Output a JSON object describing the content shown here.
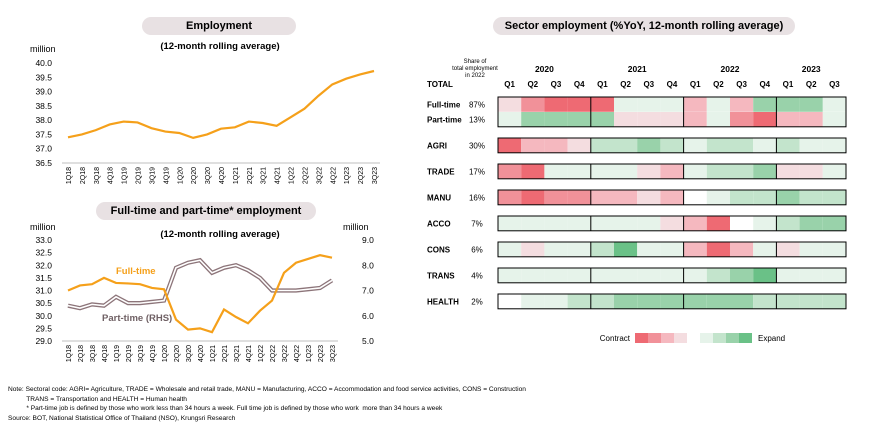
{
  "chart_data": [
    {
      "type": "line",
      "title": "Employment",
      "subtitle": "(12-month rolling average)",
      "ylabel": "million",
      "ylim": [
        36.5,
        40.0
      ],
      "yticks": [
        "40.0",
        "39.5",
        "39.0",
        "38.5",
        "38.0",
        "37.5",
        "37.0",
        "36.5"
      ],
      "x": [
        "1Q18",
        "2Q18",
        "3Q18",
        "4Q18",
        "1Q19",
        "2Q19",
        "3Q19",
        "4Q19",
        "1Q20",
        "2Q20",
        "3Q20",
        "4Q20",
        "1Q21",
        "2Q21",
        "3Q21",
        "4Q21",
        "1Q22",
        "2Q22",
        "3Q22",
        "4Q22",
        "1Q23",
        "2Q23",
        "3Q23"
      ],
      "series": [
        {
          "color": "#f5a01a",
          "values": [
            37.4,
            37.5,
            37.65,
            37.85,
            37.95,
            37.92,
            37.72,
            37.6,
            37.55,
            37.38,
            37.5,
            37.7,
            37.75,
            37.95,
            37.9,
            37.8,
            38.1,
            38.4,
            38.85,
            39.25,
            39.45,
            39.6,
            39.72
          ]
        }
      ]
    },
    {
      "type": "line",
      "title": "Full-time and part-time* employment",
      "subtitle": "(12-month rolling average)",
      "ylabel": "million",
      "y2label": "million",
      "ylim": [
        29.0,
        33.0
      ],
      "y2lim": [
        5.0,
        9.0
      ],
      "yticks": [
        "33.0",
        "32.5",
        "32.0",
        "31.5",
        "31.0",
        "30.5",
        "30.0",
        "29.5",
        "29.0"
      ],
      "y2ticks": [
        "9.0",
        "8.0",
        "7.0",
        "6.0",
        "5.0"
      ],
      "x": [
        "1Q18",
        "2Q18",
        "3Q18",
        "4Q18",
        "1Q19",
        "2Q19",
        "3Q19",
        "4Q19",
        "1Q20",
        "2Q20",
        "3Q20",
        "4Q20",
        "1Q21",
        "2Q21",
        "3Q21",
        "4Q21",
        "1Q22",
        "2Q22",
        "3Q22",
        "4Q22",
        "1Q23",
        "2Q23",
        "3Q23"
      ],
      "series": [
        {
          "name": "Full-time",
          "axis": "left",
          "color": "#f5a01a",
          "values": [
            31.0,
            31.2,
            31.25,
            31.5,
            31.3,
            31.28,
            31.25,
            31.1,
            31.05,
            29.85,
            29.45,
            29.5,
            29.35,
            30.25,
            29.95,
            29.7,
            30.2,
            30.6,
            31.7,
            32.1,
            32.25,
            32.4,
            32.3
          ]
        },
        {
          "name": "Part-time (RHS)",
          "axis": "right",
          "color": "#8c7479",
          "values": [
            6.4,
            6.3,
            6.45,
            6.4,
            6.75,
            6.5,
            6.5,
            6.55,
            6.6,
            7.9,
            8.1,
            8.2,
            7.7,
            7.9,
            8.0,
            7.8,
            7.5,
            7.0,
            7.0,
            7.0,
            7.05,
            7.1,
            7.4
          ]
        }
      ]
    },
    {
      "type": "heatmap",
      "title": "Sector employment (%YoY, 12-month rolling average)",
      "share_header": "Share of total employment in 2022",
      "years": [
        "2020",
        "2021",
        "2022",
        "2023"
      ],
      "quarters": [
        "Q1",
        "Q2",
        "Q3",
        "Q4",
        "Q1",
        "Q2",
        "Q3",
        "Q4",
        "Q1",
        "Q2",
        "Q3",
        "Q4",
        "Q1",
        "Q2",
        "Q3"
      ],
      "rows": [
        {
          "label": "TOTAL",
          "share": "",
          "group": 0,
          "values": []
        },
        {
          "label": "Full-time",
          "share": "87%",
          "group": 0,
          "values": [
            -1,
            -3,
            -4,
            -4,
            -4,
            1,
            1,
            1,
            -2,
            1,
            -2,
            3,
            3,
            3,
            1
          ]
        },
        {
          "label": "Part-time",
          "share": "13%",
          "group": 0,
          "values": [
            1,
            3,
            3,
            3,
            3,
            -1,
            -1,
            -1,
            -2,
            1,
            -3,
            -4,
            -2,
            -2,
            1
          ]
        },
        {
          "label": "AGRI",
          "share": "30%",
          "group": 1,
          "values": [
            -4,
            -2,
            -2,
            -1,
            2,
            2,
            3,
            2,
            1,
            2,
            2,
            1,
            2,
            1,
            1
          ]
        },
        {
          "label": "TRADE",
          "share": "17%",
          "group": 2,
          "values": [
            -3,
            -4,
            1,
            1,
            1,
            1,
            -1,
            -2,
            1,
            2,
            2,
            3,
            -1,
            -1,
            1
          ]
        },
        {
          "label": "MANU",
          "share": "16%",
          "group": 3,
          "values": [
            -3,
            -4,
            -3,
            -3,
            -2,
            -2,
            -1,
            -2,
            0,
            1,
            2,
            2,
            3,
            2,
            2
          ]
        },
        {
          "label": "ACCO",
          "share": "7%",
          "group": 4,
          "values": [
            1,
            1,
            1,
            1,
            1,
            1,
            1,
            -1,
            -2,
            -4,
            0,
            1,
            2,
            3,
            3
          ]
        },
        {
          "label": "CONS",
          "share": "6%",
          "group": 5,
          "values": [
            1,
            -1,
            1,
            1,
            2,
            4,
            1,
            1,
            -2,
            -4,
            -2,
            1,
            -1,
            1,
            1
          ]
        },
        {
          "label": "TRANS",
          "share": "4%",
          "group": 6,
          "values": [
            1,
            1,
            1,
            1,
            1,
            1,
            1,
            1,
            1,
            2,
            3,
            4,
            1,
            1,
            1
          ]
        },
        {
          "label": "HEALTH",
          "share": "2%",
          "group": 7,
          "values": [
            0,
            1,
            1,
            2,
            2,
            3,
            3,
            3,
            3,
            3,
            3,
            2,
            2,
            2,
            2
          ]
        }
      ],
      "legend": {
        "contract": "Contract",
        "expand": "Expand"
      },
      "colors": {
        "neg": [
          "#f4dde0",
          "#f5b8bf",
          "#f19199",
          "#ee6a73"
        ],
        "pos": [
          "#e6f3ea",
          "#c3e4cc",
          "#99d2aa",
          "#6ac187"
        ]
      }
    }
  ],
  "notes": {
    "line1": "Note: Sectoral code: AGRI= Agriculture, TRADE = Wholesale and retail trade, MANU = Manufacturing, ACCO = Accommodation and food service activities, CONS = Construction",
    "line2": "          TRANS = Transportation and HEALTH = Human health",
    "line3": "          * Part-time job is defined by those who work less than 34 hours a week. Full time job is defined by those who work  more than 34 hours a week",
    "line4": "Source: BOT, National Statistical Office of Thailand (NSO), Krungsri Research"
  }
}
